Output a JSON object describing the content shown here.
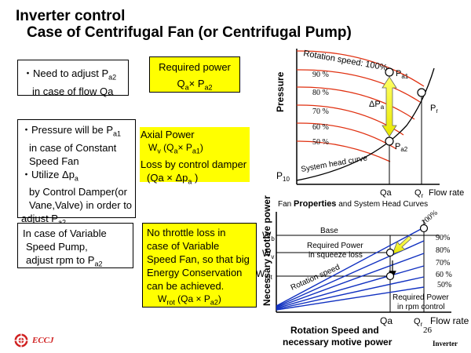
{
  "title": {
    "line1": "Inverter control",
    "line2": "Case of Centrifugal Fan (or Centrifugal Pump)"
  },
  "boxes": {
    "box1": {
      "bullet": "・",
      "text1": "Need to adjust P",
      "sub1": "a2",
      "text2": "in case of flow  Qa"
    },
    "box2": {
      "l1": "・Pressure will be P",
      "l1sub": "a1",
      "l2": "in case of Constant",
      "l3": "Speed Fan",
      "l4": "・Utilize Δp",
      "l4sub": "a",
      "l5": "by Control Damper(or",
      "l6": "Vane,Valve)  in order to",
      "l7": "adjust P",
      "l7sub": "a2"
    },
    "box3": {
      "l1": "In case of Variable",
      "l2": "Speed Pump,",
      "l3": "adjust rpm to P",
      "l3sub": "a2"
    }
  },
  "yellow": {
    "required": {
      "l1": "Required power",
      "l2a": "Q",
      "l2asub": "a",
      "l2b": "× P",
      "l2bsub": "a2"
    },
    "axial": {
      "l1": "Axial Power",
      "l2a": "W",
      "l2asub": "v",
      "l2b": "  (Q",
      "l2bsub": "a",
      "l2c": "× P",
      "l2csub": "a1",
      "l2d": ")",
      "l3": "Loss by control damper",
      "l4a": "(Qa ×  Δp",
      "l4asub": "a",
      "l4b": " )"
    },
    "nothrottle": {
      "l1": "No throttle loss in",
      "l2": "case of Variable",
      "l3": "Speed Fan, so that big",
      "l4": "Energy Conservation",
      "l5": "can be achieved.",
      "l6a": "W",
      "l6asub": "rot",
      "l6b": "   (Qa × P",
      "l6bsub": "a2",
      "l6c": ")"
    }
  },
  "chart_top": {
    "ylabel": "Pressure",
    "rotation_label": "Rotation speed: 100%",
    "speeds": [
      "90 %",
      "80 %",
      "70 %",
      "60 %",
      "50 %"
    ],
    "pa1": "P",
    "pa1sub": "a1",
    "pr": "P",
    "prsub": "r",
    "dpa": "ΔP",
    "dpasub": "a",
    "pa2": "P",
    "pa2sub": "a2",
    "p10": "P",
    "p10sub": "10",
    "system_head": "System head curve",
    "qa": "Qa",
    "qr": "Q",
    "qrsub": "r",
    "flow": "Flow rate",
    "caption_a": "Fan ",
    "caption_b": "Properties",
    "caption_c": " and System Head Curves"
  },
  "chart_bottom": {
    "ylabel": "Necessary motive power",
    "wb": "W",
    "wbsub": "b",
    "wv": "W",
    "wvsub": "v",
    "wrot": "W",
    "wrotsub": "rot",
    "base": "Base",
    "req_squeeze_1": "Required Power",
    "req_squeeze_2": "in squeeze loss",
    "rotation_speed": "Rotation speed",
    "percents": [
      "100%",
      "90%",
      "80%",
      "70%",
      "60 %",
      "50%"
    ],
    "req_rpm_1": "Required Power",
    "req_rpm_2": "in rpm control",
    "qa": "Qa",
    "qr": "Q",
    "qrsub": "r",
    "page_num": "26",
    "flow": "Flow rate",
    "caption_1": "Rotation Speed and",
    "caption_2": "necessary motive power"
  },
  "footer": {
    "logo": "ECCJ",
    "right": "Inverter"
  }
}
